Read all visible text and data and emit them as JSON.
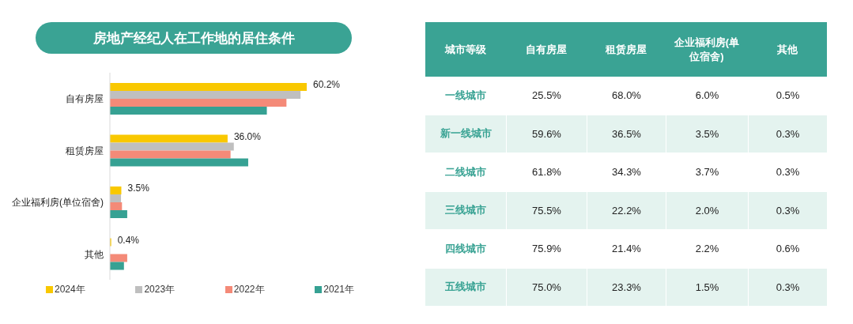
{
  "chart_data": [
    {
      "type": "bar",
      "title": "房地产经纪人在工作地的居住条件",
      "orientation": "horizontal",
      "legend": "bottom",
      "categories": [
        "自有房屋",
        "租赁房屋",
        "企业福利房(单位宿舍)",
        "其他"
      ],
      "series": [
        {
          "name": "2024年",
          "color": "#f9c800",
          "values": [
            60.2,
            36.0,
            3.5,
            0.4
          ],
          "value_labels": [
            "60.2%",
            "36.0%",
            "3.5%",
            "0.4%"
          ]
        },
        {
          "name": "2023年",
          "color": "#bfbfbf",
          "values": [
            58.3,
            37.9,
            3.4,
            0
          ]
        },
        {
          "name": "2022年",
          "color": "#f48a78",
          "values": [
            54.0,
            36.9,
            3.7,
            5.3
          ]
        },
        {
          "name": "2021年",
          "color": "#36a193",
          "values": [
            48.0,
            42.3,
            5.3,
            4.3
          ]
        }
      ]
    },
    {
      "type": "heatmap",
      "ylabel": "城市等级",
      "categories": [
        "自有房屋",
        "租赁房屋",
        "企业福利房(单位宿舍)",
        "其他"
      ],
      "y_categories": [
        "一线城市",
        "新一线城市",
        "二线城市",
        "三线城市",
        "四线城市",
        "五线城市"
      ],
      "cells": [
        [
          25.5,
          68.0,
          6.0,
          0.5
        ],
        [
          59.6,
          36.5,
          3.5,
          0.3
        ],
        [
          61.8,
          34.3,
          3.7,
          0.3
        ],
        [
          75.5,
          22.2,
          2.0,
          0.3
        ],
        [
          75.9,
          21.4,
          2.2,
          0.6
        ],
        [
          75.0,
          23.3,
          1.5,
          0.3
        ]
      ],
      "cell_labels": [
        [
          "25.5%",
          "68.0%",
          "6.0%",
          "0.5%"
        ],
        [
          "59.6%",
          "36.5%",
          "3.5%",
          "0.3%"
        ],
        [
          "61.8%",
          "34.3%",
          "3.7%",
          "0.3%"
        ],
        [
          "75.5%",
          "22.2%",
          "2.0%",
          "0.3%"
        ],
        [
          "75.9%",
          "21.4%",
          "2.2%",
          "0.6%"
        ],
        [
          "75.0%",
          "23.3%",
          "1.5%",
          "0.3%"
        ]
      ]
    }
  ]
}
